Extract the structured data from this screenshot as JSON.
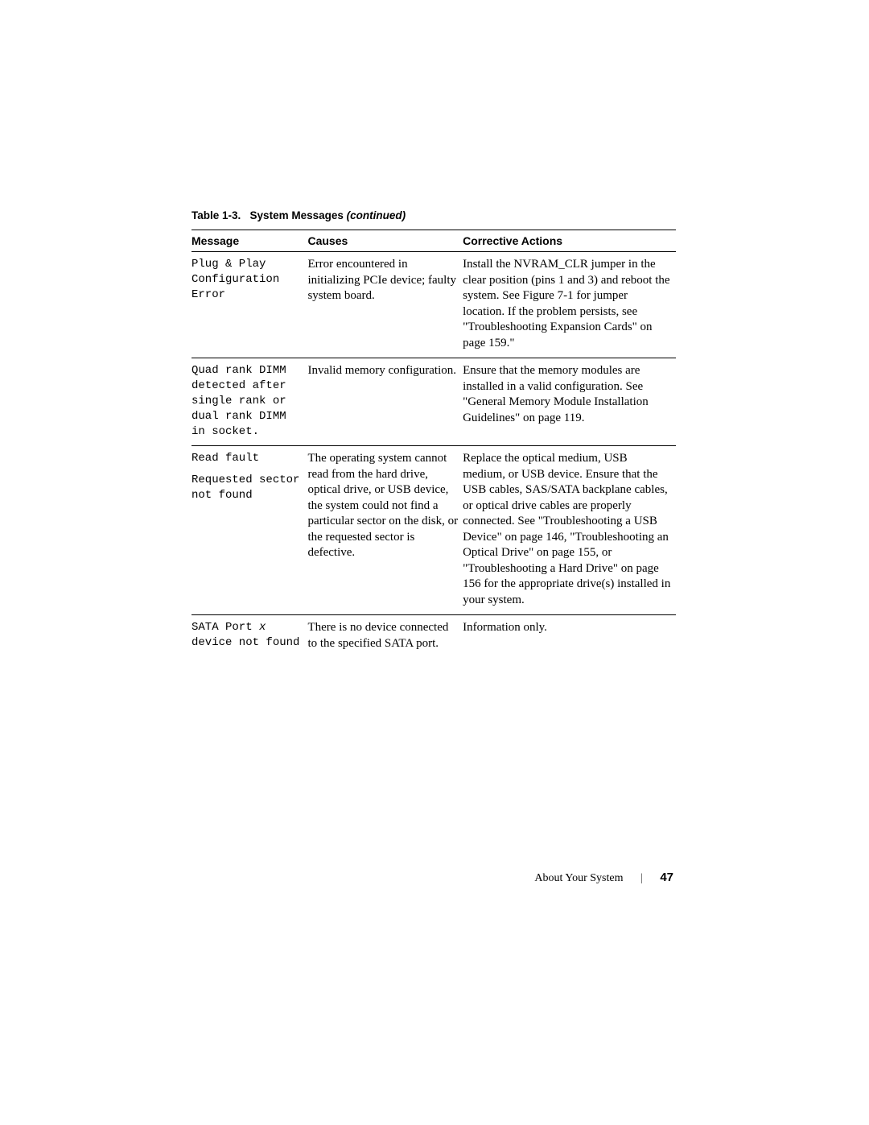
{
  "caption": {
    "prefix": "Table 1-3.",
    "title": "System Messages",
    "suffix": "(continued)"
  },
  "columns": [
    "Message",
    "Causes",
    "Corrective Actions"
  ],
  "rows": [
    {
      "message": "Plug & Play Configuration Error",
      "causes": "Error encountered in initializing PCIe device; faulty system board.",
      "actions": "Install the NVRAM_CLR jumper in the clear position (pins 1 and 3) and reboot the system. See Figure 7-1 for jumper location. If the problem persists, see \"Troubleshooting Expansion Cards\" on page 159.\""
    },
    {
      "message": "Quad rank DIMM detected after single rank or dual rank DIMM in socket.",
      "causes": "Invalid memory configuration.",
      "actions": "Ensure that the memory modules are installed in a valid configuration. See \"General Memory Module Installation Guidelines\" on page 119."
    },
    {
      "message_a": "Read fault",
      "message_b": "Requested sector not found",
      "causes": "The operating system cannot read from the hard drive, optical drive, or USB device, the system could not find a particular sector on the disk, or the requested sector is defective.",
      "actions": "Replace the optical medium, USB medium, or USB device. Ensure that the USB cables, SAS/SATA backplane cables, or optical drive cables are properly connected. See \"Troubleshooting a USB Device\" on page 146, \"Troubleshooting an Optical Drive\" on page 155, or \"Troubleshooting a Hard Drive\" on page 156 for the appropriate drive(s) installed in your system."
    },
    {
      "message_pre": "SATA Port ",
      "message_var": "x",
      "message_post": " device not found",
      "causes": "There is no device connected to the specified SATA port.",
      "actions": "Information only."
    }
  ],
  "footer": {
    "section": "About Your System",
    "page": "47"
  }
}
